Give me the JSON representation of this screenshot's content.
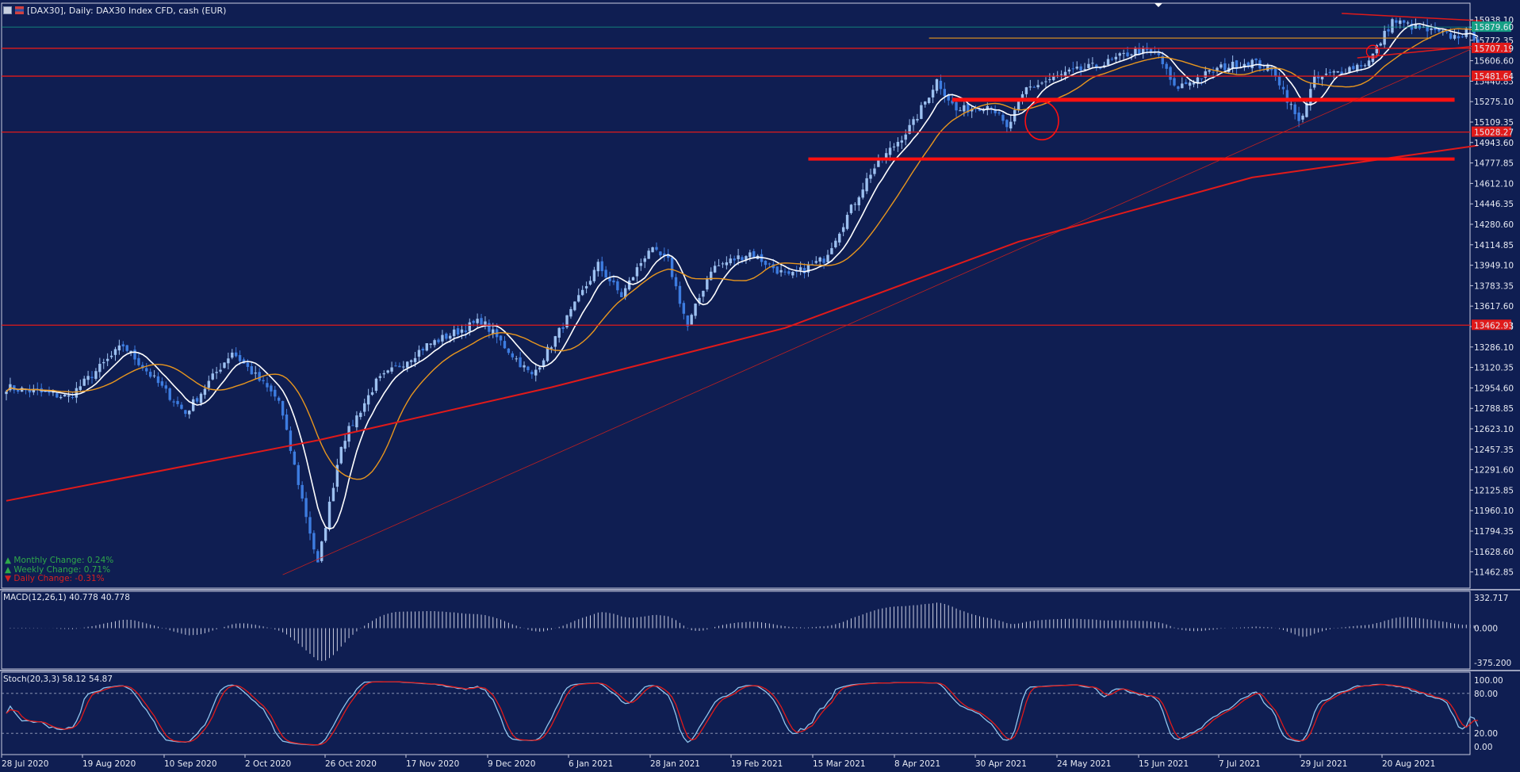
{
  "header": {
    "title": "[DAX30], Daily:  DAX30 Index CFD, cash (EUR)"
  },
  "changes": {
    "monthly": "Monthly Change: 0.24%",
    "weekly": "Weekly Change: 0.71%",
    "daily": "Daily Change: -0.31%"
  },
  "indicators": {
    "macd_label": "MACD(12,26,1) 40.778 40.778",
    "stoch_label": "Stoch(20,3,3) 58.12 54.87"
  },
  "colors": {
    "background": "#0f1e52",
    "bull_candle": "#9cc0f0",
    "bear_candle": "#3d7ce0",
    "sma_fast": "#ffffff",
    "sma_mid": "#e8961e",
    "sma_slow": "#e01a1a",
    "level_line": "#e01a1a",
    "stoch_main": "#8fc4ec",
    "stoch_signal": "#e01a1a"
  },
  "chart_data": {
    "type": "candlestick",
    "instrument": "DAX30 Index CFD",
    "timeframe": "Daily",
    "y_ticks": [
      "15938.10",
      "15772.35",
      "15606.60",
      "15440.85",
      "15275.10",
      "15109.35",
      "14943.60",
      "14777.85",
      "14612.10",
      "14446.35",
      "14280.60",
      "14114.85",
      "13949.10",
      "13783.35",
      "13617.60",
      "13451.85",
      "13286.10",
      "13120.35",
      "12954.60",
      "12788.85",
      "12623.10",
      "12457.35",
      "12291.60",
      "12125.85",
      "11960.10",
      "11794.35",
      "11628.60",
      "11462.85"
    ],
    "x_ticks": [
      "28 Jul 2020",
      "19 Aug 2020",
      "10 Sep 2020",
      "2 Oct 2020",
      "26 Oct 2020",
      "17 Nov 2020",
      "9 Dec 2020",
      "6 Jan 2021",
      "28 Jan 2021",
      "19 Feb 2021",
      "15 Mar 2021",
      "8 Apr 2021",
      "30 Apr 2021",
      "24 May 2021",
      "15 Jun 2021",
      "7 Jul 2021",
      "29 Jul 2021",
      "20 Aug 2021"
    ],
    "price_tags": [
      {
        "label": "15879.60",
        "value": 15879.6,
        "color": "#16a085"
      },
      {
        "label": "15707.19",
        "value": 15707.19,
        "color": "#e01a1a"
      },
      {
        "label": "15481.64",
        "value": 15481.64,
        "color": "#e01a1a"
      },
      {
        "label": "15028.27",
        "value": 15028.27,
        "color": "#e01a1a"
      },
      {
        "label": "13462.93",
        "value": 13462.93,
        "color": "#e01a1a"
      }
    ],
    "horizontal_levels": [
      15707.19,
      15481.64,
      15028.27,
      13462.93
    ],
    "support_zones": [
      15290,
      14810
    ],
    "ohlc_anchors": [
      [
        0,
        12960
      ],
      [
        16,
        12880
      ],
      [
        30,
        13300
      ],
      [
        46,
        12750
      ],
      [
        58,
        13250
      ],
      [
        70,
        12850
      ],
      [
        80,
        11520
      ],
      [
        86,
        12500
      ],
      [
        95,
        13000
      ],
      [
        108,
        13300
      ],
      [
        122,
        13500
      ],
      [
        135,
        13050
      ],
      [
        146,
        13620
      ],
      [
        152,
        13950
      ],
      [
        158,
        13700
      ],
      [
        165,
        14080
      ],
      [
        170,
        13980
      ],
      [
        175,
        13450
      ],
      [
        181,
        13920
      ],
      [
        191,
        14050
      ],
      [
        201,
        13850
      ],
      [
        210,
        14000
      ],
      [
        222,
        14700
      ],
      [
        233,
        15100
      ],
      [
        239,
        15450
      ],
      [
        244,
        15200
      ],
      [
        253,
        15250
      ],
      [
        257,
        15050
      ],
      [
        262,
        15380
      ],
      [
        272,
        15500
      ],
      [
        282,
        15580
      ],
      [
        290,
        15690
      ],
      [
        296,
        15650
      ],
      [
        300,
        15380
      ],
      [
        312,
        15550
      ],
      [
        320,
        15600
      ],
      [
        326,
        15500
      ],
      [
        332,
        15100
      ],
      [
        336,
        15450
      ],
      [
        350,
        15600
      ],
      [
        356,
        15930
      ],
      [
        365,
        15850
      ],
      [
        372,
        15800
      ],
      [
        376,
        15850
      ],
      [
        378,
        15750
      ]
    ],
    "ma_slow": {
      "name": "",
      "points": [
        [
          0,
          12040
        ],
        [
          80,
          12530
        ],
        [
          140,
          12960
        ],
        [
          200,
          13440
        ],
        [
          260,
          14140
        ],
        [
          320,
          14660
        ],
        [
          378,
          14920
        ]
      ]
    },
    "macd": {
      "ylim": [
        -375.2,
        332.717
      ],
      "y_ticks": [
        "332.717",
        "0.000",
        "-375.200"
      ]
    },
    "stochastic": {
      "ylim": [
        0,
        100
      ],
      "y_ticks": [
        "100.00",
        "80.00",
        "20.00",
        "0.00"
      ],
      "levels": [
        80,
        20
      ]
    }
  }
}
